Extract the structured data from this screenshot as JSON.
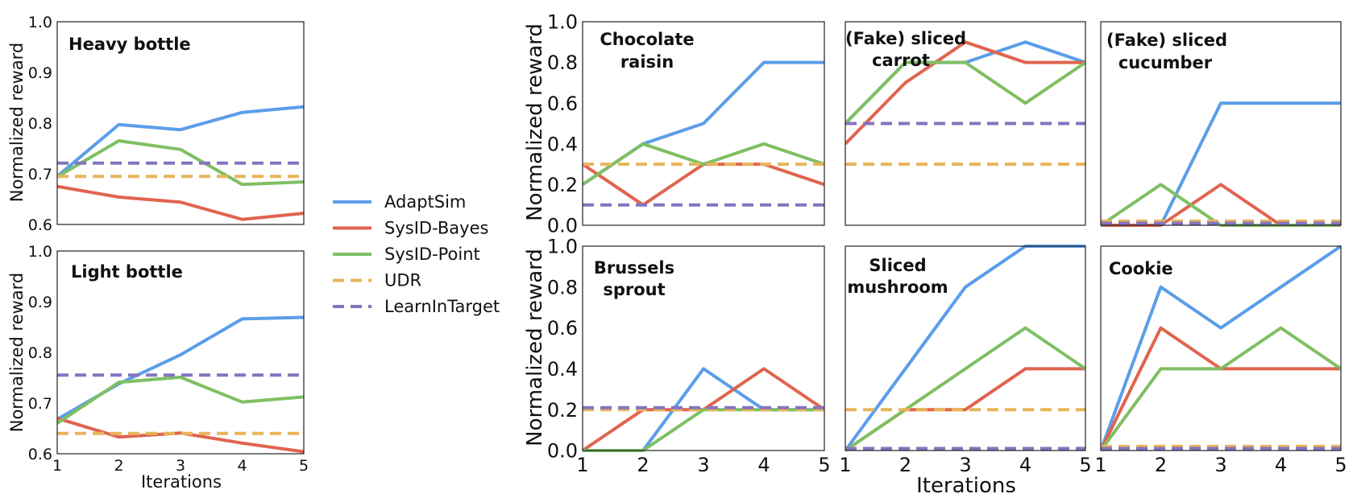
{
  "colors": {
    "AdaptSim": "#5b9ee9",
    "SysID-Bayes": "#e0644f",
    "SysID-Point": "#7fbf63",
    "UDR": "#e8b55a",
    "LearnInTarget": "#8673bf"
  },
  "legend": [
    {
      "name": "AdaptSim",
      "style": "solid"
    },
    {
      "name": "SysID-Bayes",
      "style": "solid"
    },
    {
      "name": "SysID-Point",
      "style": "solid"
    },
    {
      "name": "UDR",
      "style": "dashed"
    },
    {
      "name": "LearnInTarget",
      "style": "dashed"
    }
  ],
  "axis_labels": {
    "left_ylabel": "Normalized reward",
    "left_xlabel": "Iterations",
    "right_ylabel": "Normalized reward",
    "right_xlabel": "Iterations"
  },
  "chart_data": [
    {
      "type": "line",
      "title": "Heavy bottle",
      "xlabel": "",
      "ylabel": "Normalized reward",
      "x": [
        1,
        2,
        3,
        4,
        5
      ],
      "xlim": [
        1,
        5
      ],
      "ylim": [
        0.6,
        1.0
      ],
      "yticks": [
        "0.6",
        "0.7",
        "0.8",
        "0.9",
        "1.0"
      ],
      "xticks": [],
      "series": [
        {
          "name": "AdaptSim",
          "values": [
            0.695,
            0.797,
            0.787,
            0.821,
            0.832
          ]
        },
        {
          "name": "SysID-Bayes",
          "values": [
            0.675,
            0.654,
            0.644,
            0.61,
            0.622
          ]
        },
        {
          "name": "SysID-Point",
          "values": [
            0.694,
            0.765,
            0.748,
            0.679,
            0.684
          ]
        },
        {
          "name": "UDR",
          "values": [
            0.695,
            0.695,
            0.695,
            0.695,
            0.695
          ]
        },
        {
          "name": "LearnInTarget",
          "values": [
            0.721,
            0.721,
            0.721,
            0.721,
            0.721
          ]
        }
      ]
    },
    {
      "type": "line",
      "title": "Light bottle",
      "xlabel": "Iterations",
      "ylabel": "Normalized reward",
      "x": [
        1,
        2,
        3,
        4,
        5
      ],
      "xlim": [
        1,
        5
      ],
      "ylim": [
        0.6,
        1.0
      ],
      "yticks": [
        "0.6",
        "0.7",
        "0.8",
        "0.9",
        "1.0"
      ],
      "xticks": [
        "1",
        "2",
        "3",
        "4",
        "5"
      ],
      "series": [
        {
          "name": "AdaptSim",
          "values": [
            0.668,
            0.738,
            0.795,
            0.866,
            0.869
          ]
        },
        {
          "name": "SysID-Bayes",
          "values": [
            0.67,
            0.633,
            0.641,
            0.621,
            0.604
          ]
        },
        {
          "name": "SysID-Point",
          "values": [
            0.66,
            0.741,
            0.751,
            0.702,
            0.712
          ]
        },
        {
          "name": "UDR",
          "values": [
            0.64,
            0.64,
            0.64,
            0.64,
            0.64
          ]
        },
        {
          "name": "LearnInTarget",
          "values": [
            0.755,
            0.755,
            0.755,
            0.755,
            0.755
          ]
        }
      ]
    },
    {
      "type": "line",
      "title": "Chocolate raisin",
      "xlabel": "",
      "ylabel": "Normalized reward",
      "x": [
        1,
        2,
        3,
        4,
        5
      ],
      "xlim": [
        1,
        5
      ],
      "ylim": [
        0,
        1
      ],
      "yticks": [
        "0.0",
        "0.2",
        "0.4",
        "0.6",
        "0.8",
        "1.0"
      ],
      "xticks": [],
      "series": [
        {
          "name": "AdaptSim",
          "values": [
            0.2,
            0.4,
            0.5,
            0.8,
            0.8
          ]
        },
        {
          "name": "SysID-Bayes",
          "values": [
            0.3,
            0.1,
            0.3,
            0.3,
            0.2
          ]
        },
        {
          "name": "SysID-Point",
          "values": [
            0.2,
            0.4,
            0.3,
            0.4,
            0.3
          ]
        },
        {
          "name": "UDR",
          "values": [
            0.3,
            0.3,
            0.3,
            0.3,
            0.3
          ]
        },
        {
          "name": "LearnInTarget",
          "values": [
            0.1,
            0.1,
            0.1,
            0.1,
            0.1
          ]
        }
      ]
    },
    {
      "type": "line",
      "title": "(Fake) sliced carrot",
      "xlabel": "",
      "ylabel": "",
      "x": [
        1,
        2,
        3,
        4,
        5
      ],
      "xlim": [
        1,
        5
      ],
      "ylim": [
        0,
        1
      ],
      "yticks": [],
      "xticks": [],
      "series": [
        {
          "name": "AdaptSim",
          "values": [
            0.5,
            0.8,
            0.8,
            0.9,
            0.8
          ]
        },
        {
          "name": "SysID-Bayes",
          "values": [
            0.4,
            0.7,
            0.9,
            0.8,
            0.8
          ]
        },
        {
          "name": "SysID-Point",
          "values": [
            0.5,
            0.8,
            0.8,
            0.6,
            0.8
          ]
        },
        {
          "name": "UDR",
          "values": [
            0.3,
            0.3,
            0.3,
            0.3,
            0.3
          ]
        },
        {
          "name": "LearnInTarget",
          "values": [
            0.5,
            0.5,
            0.5,
            0.5,
            0.5
          ]
        }
      ]
    },
    {
      "type": "line",
      "title": "(Fake) sliced cucumber",
      "xlabel": "",
      "ylabel": "",
      "x": [
        1,
        2,
        3,
        4,
        5
      ],
      "xlim": [
        1,
        5
      ],
      "ylim": [
        0,
        1
      ],
      "yticks": [],
      "xticks": [],
      "series": [
        {
          "name": "AdaptSim",
          "values": [
            0.0,
            0.0,
            0.6,
            0.6,
            0.6
          ]
        },
        {
          "name": "SysID-Bayes",
          "values": [
            0.0,
            0.0,
            0.2,
            0.0,
            0.0
          ]
        },
        {
          "name": "SysID-Point",
          "values": [
            0.0,
            0.2,
            0.0,
            0.0,
            0.0
          ]
        },
        {
          "name": "UDR",
          "values": [
            0.02,
            0.02,
            0.02,
            0.02,
            0.02
          ]
        },
        {
          "name": "LearnInTarget",
          "values": [
            0.01,
            0.01,
            0.01,
            0.01,
            0.01
          ]
        }
      ]
    },
    {
      "type": "line",
      "title": "Brussels sprout",
      "xlabel": "",
      "ylabel": "Normalized reward",
      "x": [
        1,
        2,
        3,
        4,
        5
      ],
      "xlim": [
        1,
        5
      ],
      "ylim": [
        0,
        1
      ],
      "yticks": [
        "0.0",
        "0.2",
        "0.4",
        "0.6",
        "0.8",
        "1.0"
      ],
      "xticks": [
        "1",
        "2",
        "3",
        "4",
        "5"
      ],
      "series": [
        {
          "name": "AdaptSim",
          "values": [
            0.0,
            0.0,
            0.4,
            0.2,
            0.2
          ]
        },
        {
          "name": "SysID-Bayes",
          "values": [
            0.0,
            0.2,
            0.2,
            0.4,
            0.2
          ]
        },
        {
          "name": "SysID-Point",
          "values": [
            0.0,
            0.0,
            0.2,
            0.2,
            0.2
          ]
        },
        {
          "name": "UDR",
          "values": [
            0.2,
            0.2,
            0.2,
            0.2,
            0.2
          ]
        },
        {
          "name": "LearnInTarget",
          "values": [
            0.21,
            0.21,
            0.21,
            0.21,
            0.21
          ]
        }
      ]
    },
    {
      "type": "line",
      "title": "Sliced mushroom",
      "xlabel": "Iterations",
      "ylabel": "",
      "x": [
        1,
        2,
        3,
        4,
        5
      ],
      "xlim": [
        1,
        5
      ],
      "ylim": [
        0,
        1
      ],
      "yticks": [],
      "xticks": [
        "1",
        "2",
        "3",
        "4",
        "5"
      ],
      "series": [
        {
          "name": "AdaptSim",
          "values": [
            0.0,
            0.4,
            0.8,
            1.0,
            1.0
          ]
        },
        {
          "name": "SysID-Bayes",
          "values": [
            0.0,
            0.2,
            0.2,
            0.4,
            0.4
          ]
        },
        {
          "name": "SysID-Point",
          "values": [
            0.0,
            0.2,
            0.4,
            0.6,
            0.4
          ]
        },
        {
          "name": "UDR",
          "values": [
            0.2,
            0.2,
            0.2,
            0.2,
            0.2
          ]
        },
        {
          "name": "LearnInTarget",
          "values": [
            0.01,
            0.01,
            0.01,
            0.01,
            0.01
          ]
        }
      ]
    },
    {
      "type": "line",
      "title": "Cookie",
      "xlabel": "",
      "ylabel": "",
      "x": [
        1,
        2,
        3,
        4,
        5
      ],
      "xlim": [
        1,
        5
      ],
      "ylim": [
        0,
        1
      ],
      "yticks": [],
      "xticks": [
        "1",
        "2",
        "3",
        "4",
        "5"
      ],
      "series": [
        {
          "name": "AdaptSim",
          "values": [
            0.0,
            0.8,
            0.6,
            0.8,
            1.0
          ]
        },
        {
          "name": "SysID-Bayes",
          "values": [
            0.0,
            0.6,
            0.4,
            0.4,
            0.4
          ]
        },
        {
          "name": "SysID-Point",
          "values": [
            0.0,
            0.4,
            0.4,
            0.6,
            0.4
          ]
        },
        {
          "name": "UDR",
          "values": [
            0.02,
            0.02,
            0.02,
            0.02,
            0.02
          ]
        },
        {
          "name": "LearnInTarget",
          "values": [
            0.01,
            0.01,
            0.01,
            0.01,
            0.01
          ]
        }
      ]
    }
  ]
}
